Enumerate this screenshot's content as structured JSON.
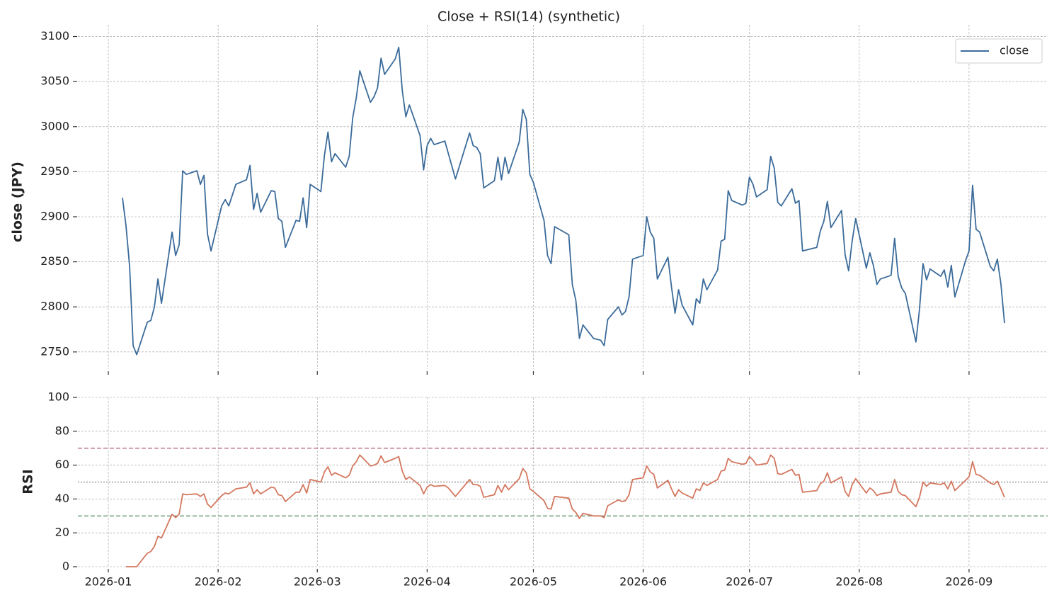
{
  "chart_data": [
    {
      "type": "line",
      "title": "Close + RSI(14) (synthetic)",
      "y_label": "close (JPY)",
      "x": [
        5,
        6,
        7,
        8,
        9,
        12,
        13,
        14,
        15,
        16,
        19,
        20,
        21,
        22,
        23,
        26,
        27,
        28,
        29,
        30,
        33,
        34,
        35,
        37,
        40,
        41,
        42,
        43,
        44,
        47,
        48,
        49,
        50,
        51,
        54,
        55,
        56,
        57,
        58,
        61,
        62,
        63,
        64,
        65,
        68,
        69,
        70,
        71,
        72,
        75,
        76,
        77,
        78,
        79,
        82,
        83,
        84,
        85,
        86,
        89,
        90,
        91,
        92,
        93,
        96,
        97,
        99,
        103,
        104,
        105,
        106,
        107,
        110,
        111,
        112,
        113,
        114,
        117,
        118,
        119,
        120,
        121,
        124,
        125,
        126,
        127,
        131,
        132,
        133,
        134,
        135,
        138,
        140,
        141,
        142,
        145,
        146,
        147,
        148,
        149,
        152,
        153,
        154,
        155,
        156,
        159,
        160,
        161,
        162,
        163,
        166,
        167,
        168,
        169,
        170,
        173,
        174,
        175,
        176,
        177,
        180,
        181,
        182,
        183,
        184,
        187,
        188,
        189,
        190,
        191,
        194,
        195,
        196,
        197,
        201,
        202,
        203,
        204,
        205,
        208,
        209,
        210,
        211,
        212,
        215,
        216,
        217,
        218,
        219,
        222,
        223,
        224,
        225,
        226,
        229,
        230,
        231,
        232,
        233,
        236,
        237,
        238,
        239,
        240,
        243,
        244,
        245,
        246,
        247,
        250,
        251,
        252,
        253,
        254
      ],
      "series": [
        {
          "name": "close",
          "color": "#3b6b9a",
          "values": [
            2921,
            2890,
            2845,
            2757,
            2747,
            2783,
            2785,
            2800,
            2831,
            2804,
            2883,
            2857,
            2869,
            2951,
            2947,
            2951,
            2936,
            2946,
            2881,
            2862,
            2912,
            2919,
            2912,
            2936,
            2941,
            2957,
            2908,
            2926,
            2905,
            2929,
            2928,
            2898,
            2895,
            2866,
            2896,
            2895,
            2921,
            2888,
            2936,
            2928,
            2968,
            2994,
            2961,
            2970,
            2955,
            2967,
            3010,
            3032,
            3062,
            3027,
            3033,
            3043,
            3076,
            3058,
            3075,
            3088,
            3040,
            3011,
            3024,
            2990,
            2952,
            2979,
            2987,
            2980,
            2984,
            2970,
            2942,
            2993,
            2979,
            2977,
            2970,
            2932,
            2940,
            2966,
            2941,
            2966,
            2948,
            2983,
            3019,
            3008,
            2947,
            2938,
            2896,
            2857,
            2848,
            2889,
            2880,
            2825,
            2807,
            2765,
            2780,
            2765,
            2763,
            2757,
            2786,
            2800,
            2791,
            2795,
            2811,
            2853,
            2857,
            2900,
            2883,
            2876,
            2831,
            2855,
            2822,
            2793,
            2819,
            2802,
            2780,
            2809,
            2804,
            2831,
            2819,
            2841,
            2873,
            2875,
            2929,
            2918,
            2913,
            2915,
            2944,
            2936,
            2922,
            2930,
            2967,
            2954,
            2916,
            2912,
            2931,
            2915,
            2918,
            2862,
            2866,
            2884,
            2895,
            2917,
            2888,
            2907,
            2858,
            2840,
            2873,
            2898,
            2843,
            2860,
            2846,
            2825,
            2831,
            2835,
            2876,
            2834,
            2821,
            2815,
            2761,
            2797,
            2848,
            2830,
            2842,
            2834,
            2841,
            2822,
            2846,
            2811,
            2851,
            2862,
            2935,
            2886,
            2883,
            2845,
            2840,
            2853,
            2825,
            2782
          ]
        }
      ],
      "xlim": [
        -7.6,
        266.2
      ],
      "xticks": [
        1,
        32,
        60,
        91,
        121,
        152,
        182,
        213,
        244
      ],
      "show_xtick_labels": false,
      "ylim": [
        2731,
        3113
      ],
      "yticks": [
        2750,
        2800,
        2850,
        2900,
        2950,
        3000,
        3050,
        3100
      ],
      "grid": true,
      "legend": "upper right"
    },
    {
      "type": "line",
      "y_label": "RSI",
      "x": [
        5,
        6,
        7,
        8,
        9,
        12,
        13,
        14,
        15,
        16,
        19,
        20,
        21,
        22,
        23,
        26,
        27,
        28,
        29,
        30,
        33,
        34,
        35,
        37,
        40,
        41,
        42,
        43,
        44,
        47,
        48,
        49,
        50,
        51,
        54,
        55,
        56,
        57,
        58,
        61,
        62,
        63,
        64,
        65,
        68,
        69,
        70,
        71,
        72,
        75,
        76,
        77,
        78,
        79,
        82,
        83,
        84,
        85,
        86,
        89,
        90,
        91,
        92,
        93,
        96,
        97,
        99,
        103,
        104,
        105,
        106,
        107,
        110,
        111,
        112,
        113,
        114,
        117,
        118,
        119,
        120,
        121,
        124,
        125,
        126,
        127,
        131,
        132,
        133,
        134,
        135,
        138,
        140,
        141,
        142,
        145,
        146,
        147,
        148,
        149,
        152,
        153,
        154,
        155,
        156,
        159,
        160,
        161,
        162,
        163,
        166,
        167,
        168,
        169,
        170,
        173,
        174,
        175,
        176,
        177,
        180,
        181,
        182,
        183,
        184,
        187,
        188,
        189,
        190,
        191,
        194,
        195,
        196,
        197,
        201,
        202,
        203,
        204,
        205,
        208,
        209,
        210,
        211,
        212,
        215,
        216,
        217,
        218,
        219,
        222,
        223,
        224,
        225,
        226,
        229,
        230,
        231,
        232,
        233,
        236,
        237,
        238,
        239,
        240,
        243,
        244,
        245,
        246,
        247,
        250,
        251,
        252,
        253,
        254
      ],
      "series": [
        {
          "color": "#d4785f",
          "values": [
            null,
            0,
            0,
            0,
            0,
            8,
            9,
            12,
            18,
            17,
            31,
            29,
            31,
            43,
            42.5,
            43,
            41.5,
            43,
            37,
            35,
            42,
            43.5,
            43,
            46,
            47,
            49.5,
            43,
            45.5,
            43,
            47,
            46.5,
            42.5,
            42,
            38.5,
            44,
            44,
            48.5,
            43.5,
            51.5,
            50,
            56,
            59,
            54,
            55.5,
            52.5,
            54,
            59.5,
            62,
            66,
            59.5,
            60,
            61,
            65.5,
            61.5,
            64,
            65,
            56.5,
            51.5,
            53,
            48,
            43,
            47,
            48.5,
            47.5,
            48,
            46.5,
            41.5,
            51.5,
            48.5,
            48.5,
            47.5,
            41,
            42.5,
            48,
            44,
            48.5,
            45.5,
            52,
            58,
            55.5,
            46,
            44.5,
            39,
            34.5,
            34,
            41.5,
            40.5,
            34,
            32,
            28.5,
            31.5,
            30,
            30,
            29,
            36,
            39.5,
            38.5,
            39,
            42.5,
            51.5,
            52.5,
            59.5,
            56,
            54.5,
            46.5,
            51,
            46,
            41.5,
            45.5,
            43.5,
            40.5,
            46,
            45,
            49.5,
            48,
            51.5,
            56.5,
            57,
            64,
            62,
            60.5,
            61,
            65,
            63,
            60,
            61,
            66,
            64,
            55,
            54.5,
            57.5,
            54,
            54.5,
            44,
            45,
            49,
            50.5,
            55.5,
            49.5,
            53,
            44.5,
            41.5,
            48.5,
            52,
            43.5,
            46.5,
            45,
            42,
            43,
            44,
            51.5,
            44.5,
            42.5,
            42,
            35.5,
            41,
            50,
            47.5,
            49.5,
            48.5,
            49.5,
            46,
            50.5,
            45,
            51,
            53,
            62,
            54.5,
            54,
            49.5,
            48.5,
            50.5,
            46,
            41
          ]
        }
      ],
      "xlim": [
        -7.6,
        266.2
      ],
      "xticks": [
        {
          "value": 1,
          "label": "2026-01"
        },
        {
          "value": 32,
          "label": "2026-02"
        },
        {
          "value": 60,
          "label": "2026-03"
        },
        {
          "value": 91,
          "label": "2026-04"
        },
        {
          "value": 121,
          "label": "2026-05"
        },
        {
          "value": 152,
          "label": "2026-06"
        },
        {
          "value": 182,
          "label": "2026-07"
        },
        {
          "value": 213,
          "label": "2026-08"
        },
        {
          "value": 244,
          "label": "2026-09"
        }
      ],
      "ylim": [
        0,
        100
      ],
      "yticks": [
        0,
        20,
        40,
        60,
        80,
        100
      ],
      "grid": true,
      "hlines": [
        {
          "value": 70,
          "color": "#a3485e",
          "style": "dashed"
        },
        {
          "value": 50,
          "color": "#888888",
          "style": "dotted"
        },
        {
          "value": 30,
          "color": "#3d7a4a",
          "style": "dashed"
        }
      ]
    }
  ]
}
